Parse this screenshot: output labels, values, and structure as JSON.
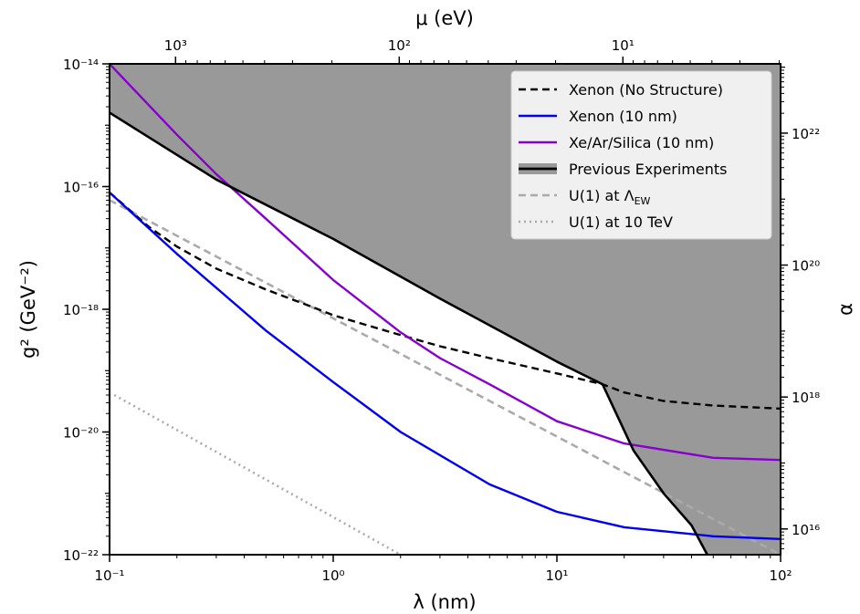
{
  "chart_data": {
    "type": "line",
    "xlabel": "λ (nm)",
    "ylabel": "g² (GeV⁻²)",
    "top_xlabel": "μ (eV)",
    "right_ylabel": "α",
    "xscale": "log",
    "yscale": "log",
    "xlim": [
      0.1,
      100
    ],
    "ylim": [
      1e-22,
      1e-14
    ],
    "x_ticks": [
      {
        "value": 0.1,
        "label": "10⁻¹"
      },
      {
        "value": 1,
        "label": "10⁰"
      },
      {
        "value": 10,
        "label": "10¹"
      },
      {
        "value": 100,
        "label": "10²"
      }
    ],
    "y_ticks": [
      {
        "value": 1e-22,
        "label": "10⁻²²"
      },
      {
        "value": 1e-20,
        "label": "10⁻²⁰"
      },
      {
        "value": 1e-18,
        "label": "10⁻¹⁸"
      },
      {
        "value": 1e-16,
        "label": "10⁻¹⁶"
      },
      {
        "value": 1e-14,
        "label": "10⁻¹⁴"
      }
    ],
    "top_ticks": [
      {
        "value": 1000,
        "label": "10³"
      },
      {
        "value": 100,
        "label": "10²"
      },
      {
        "value": 10,
        "label": "10¹"
      }
    ],
    "top_axis_relation": "mu_eV = 197.3 / lambda_nm",
    "right_ticks": [
      {
        "value": 1e+16,
        "label": "10¹⁶"
      },
      {
        "value": 1e+18,
        "label": "10¹⁸"
      },
      {
        "value": 1e+20,
        "label": "10²⁰"
      },
      {
        "value": 1e+22,
        "label": "10²²"
      }
    ],
    "right_axis_relation": "log10(alpha) = 0.93 * log10(g2) + 36.07",
    "grid": false,
    "legend_position": "top-right",
    "series": [
      {
        "name": "Xenon (No Structure)",
        "color": "#000000",
        "style": "dashed",
        "x": [
          0.1,
          0.15,
          0.2,
          0.3,
          0.5,
          0.8,
          1,
          2,
          3,
          5,
          10,
          16,
          20,
          30,
          50,
          100
        ],
        "y": [
          8e-17,
          2.2e-17,
          1.05e-17,
          4.6e-18,
          2.1e-18,
          1.1e-18,
          8e-19,
          3.8e-19,
          2.5e-19,
          1.6e-19,
          9e-20,
          6e-20,
          4.4e-20,
          3.2e-20,
          2.7e-20,
          2.4e-20
        ]
      },
      {
        "name": "Xenon (10 nm)",
        "color": "#0000ee",
        "style": "solid",
        "x": [
          0.1,
          0.2,
          0.5,
          1,
          2,
          5,
          10,
          20,
          50,
          100
        ],
        "y": [
          8e-17,
          8e-18,
          4.5e-19,
          6.5e-20,
          1e-20,
          1.4e-21,
          5e-22,
          2.8e-22,
          2e-22,
          1.8e-22
        ]
      },
      {
        "name": "Xe/Ar/Silica (10 nm)",
        "color": "#8800cc",
        "style": "solid",
        "x": [
          0.1,
          0.2,
          0.3,
          0.5,
          1,
          2,
          3,
          5,
          10,
          20,
          50,
          100
        ],
        "y": [
          1e-14,
          7e-16,
          1.6e-16,
          3e-17,
          3e-18,
          4.2e-19,
          1.6e-19,
          6e-20,
          1.5e-20,
          6.5e-21,
          3.8e-21,
          3.5e-21
        ]
      },
      {
        "name": "Previous Experiments",
        "color": "#000000",
        "style": "solid",
        "fill": "#999999",
        "x": [
          0.1,
          0.3,
          1,
          3,
          10,
          16,
          22,
          30,
          40,
          47
        ],
        "y": [
          1.6e-15,
          1.3e-16,
          1.4e-17,
          1.5e-18,
          1.4e-19,
          6e-20,
          5e-21,
          1e-21,
          3e-22,
          1e-22
        ]
      },
      {
        "name": "U(1) at Λ_EW",
        "color": "#aaaaaa",
        "style": "dashed",
        "x": [
          0.1,
          100
        ],
        "y": [
          6e-17,
          1e-22
        ]
      },
      {
        "name": "U(1) at 10 TeV",
        "color": "#aaaaaa",
        "style": "dotted",
        "x": [
          0.105,
          2
        ],
        "y": [
          4e-20,
          1e-22
        ]
      }
    ]
  }
}
